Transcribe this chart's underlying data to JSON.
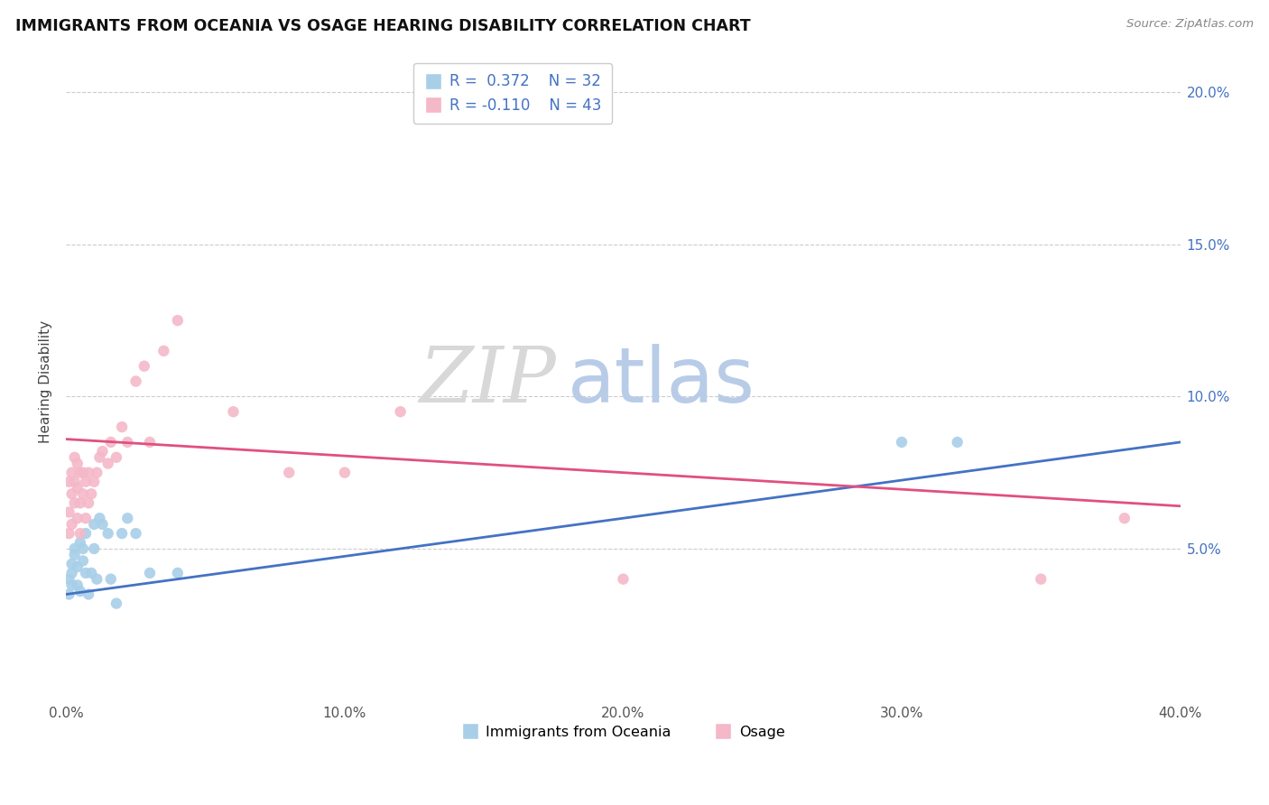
{
  "title": "IMMIGRANTS FROM OCEANIA VS OSAGE HEARING DISABILITY CORRELATION CHART",
  "source": "Source: ZipAtlas.com",
  "ylabel": "Hearing Disability",
  "xlim": [
    0.0,
    0.4
  ],
  "ylim": [
    0.0,
    0.21
  ],
  "xticks": [
    0.0,
    0.1,
    0.2,
    0.3,
    0.4
  ],
  "xtick_labels": [
    "0.0%",
    "10.0%",
    "20.0%",
    "30.0%",
    "40.0%"
  ],
  "yticks": [
    0.05,
    0.1,
    0.15,
    0.2
  ],
  "ytick_labels": [
    "5.0%",
    "10.0%",
    "15.0%",
    "20.0%"
  ],
  "right_ytick_labels": [
    "5.0%",
    "10.0%",
    "15.0%",
    "20.0%"
  ],
  "legend_blue_label": "Immigrants from Oceania",
  "legend_pink_label": "Osage",
  "blue_color": "#a8cfe8",
  "pink_color": "#f4b8c8",
  "trendline_blue_color": "#4472c4",
  "trendline_pink_color": "#e05080",
  "right_axis_color": "#4472c4",
  "blue_points_x": [
    0.001,
    0.001,
    0.002,
    0.002,
    0.002,
    0.003,
    0.003,
    0.004,
    0.004,
    0.005,
    0.005,
    0.006,
    0.006,
    0.007,
    0.007,
    0.008,
    0.009,
    0.01,
    0.01,
    0.011,
    0.012,
    0.013,
    0.015,
    0.016,
    0.018,
    0.02,
    0.022,
    0.025,
    0.03,
    0.04,
    0.3,
    0.32
  ],
  "blue_points_y": [
    0.035,
    0.04,
    0.038,
    0.042,
    0.045,
    0.05,
    0.048,
    0.044,
    0.038,
    0.052,
    0.036,
    0.05,
    0.046,
    0.055,
    0.042,
    0.035,
    0.042,
    0.058,
    0.05,
    0.04,
    0.06,
    0.058,
    0.055,
    0.04,
    0.032,
    0.055,
    0.06,
    0.055,
    0.042,
    0.042,
    0.085,
    0.085
  ],
  "pink_points_x": [
    0.001,
    0.001,
    0.001,
    0.002,
    0.002,
    0.002,
    0.003,
    0.003,
    0.003,
    0.004,
    0.004,
    0.004,
    0.005,
    0.005,
    0.005,
    0.006,
    0.006,
    0.007,
    0.007,
    0.008,
    0.008,
    0.009,
    0.01,
    0.011,
    0.012,
    0.013,
    0.015,
    0.016,
    0.018,
    0.02,
    0.022,
    0.025,
    0.028,
    0.03,
    0.035,
    0.04,
    0.06,
    0.08,
    0.1,
    0.12,
    0.2,
    0.35,
    0.38
  ],
  "pink_points_y": [
    0.055,
    0.062,
    0.072,
    0.058,
    0.068,
    0.075,
    0.065,
    0.072,
    0.08,
    0.06,
    0.07,
    0.078,
    0.055,
    0.065,
    0.075,
    0.068,
    0.075,
    0.06,
    0.072,
    0.065,
    0.075,
    0.068,
    0.072,
    0.075,
    0.08,
    0.082,
    0.078,
    0.085,
    0.08,
    0.09,
    0.085,
    0.105,
    0.11,
    0.085,
    0.115,
    0.125,
    0.095,
    0.075,
    0.075,
    0.095,
    0.04,
    0.04,
    0.06
  ],
  "blue_trend_x": [
    0.0,
    0.4
  ],
  "blue_trend_y": [
    0.035,
    0.085
  ],
  "pink_trend_x": [
    0.0,
    0.4
  ],
  "pink_trend_y": [
    0.086,
    0.064
  ],
  "watermark_zip_color": "#d8d8d8",
  "watermark_atlas_color": "#b8cce8"
}
